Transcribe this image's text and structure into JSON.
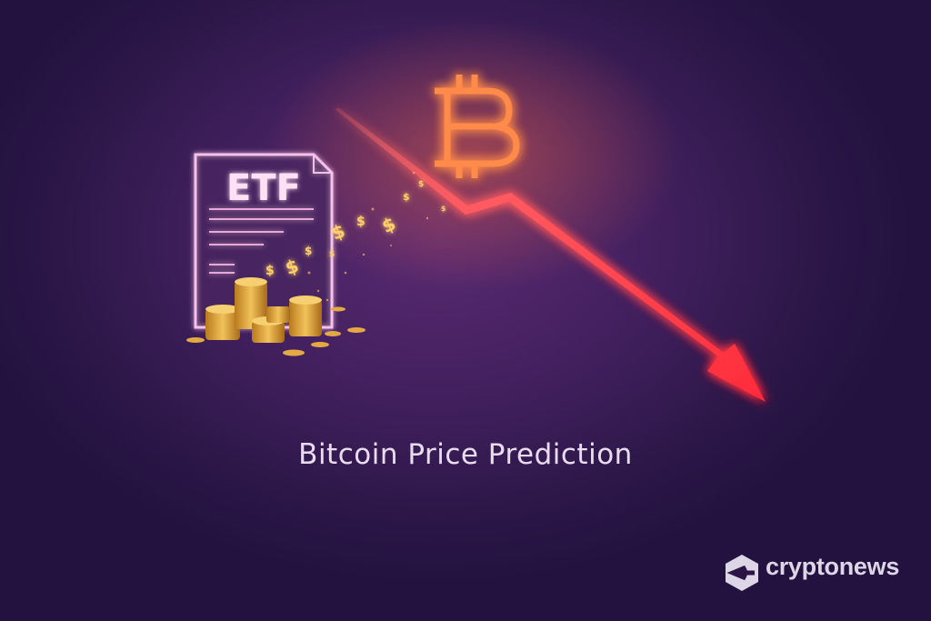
{
  "document": {
    "label": "ETF"
  },
  "title": "Bitcoin Price Prediction",
  "logo": {
    "text": "cryptonews"
  },
  "icons": [
    "etf-document-icon",
    "bitcoin-icon",
    "down-trend-arrow-icon",
    "coin-stack-icon",
    "dollar-sign-icon"
  ],
  "colors": {
    "background": "#3a1c58",
    "arrow": "#ff3b45",
    "bitcoin_glow": "#ff7a3a",
    "coins": "#e0a53a",
    "document_outline": "#f4b8e6"
  }
}
